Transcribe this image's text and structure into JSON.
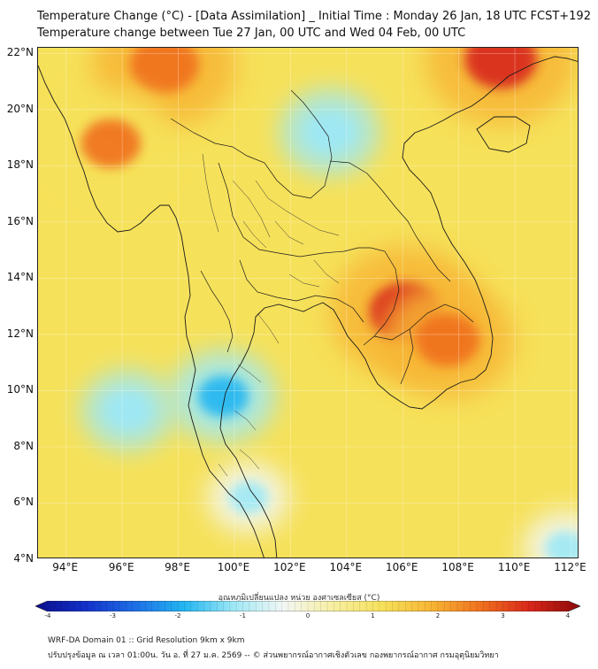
{
  "header": {
    "title_line1": "Temperature Change (°C) - [Data Assimilation] _ Initial Time : Monday 26 Jan, 18 UTC FCST+192",
    "title_line2": "Temperature change between Tue 27 Jan, 00 UTC and Wed 04 Feb, 00 UTC"
  },
  "map": {
    "lat_labels": [
      "22°N",
      "20°N",
      "18°N",
      "16°N",
      "14°N",
      "12°N",
      "10°N",
      "8°N",
      "6°N",
      "4°N"
    ],
    "lon_labels": [
      "94°E",
      "96°E",
      "98°E",
      "100°E",
      "102°E",
      "104°E",
      "106°E",
      "108°E",
      "110°E",
      "112°E"
    ],
    "lat_range": [
      4,
      22.2
    ],
    "lon_range": [
      93,
      112.3
    ],
    "background_color": "#f6e15a",
    "features": [
      {
        "kind": "warm",
        "name": "northern-myanmar-warm",
        "lon": 97.5,
        "lat": 21.6,
        "value": 2.8
      },
      {
        "kind": "warm",
        "name": "north-vietnam-warm",
        "lon": 109.5,
        "lat": 21.8,
        "value": 3.0
      },
      {
        "kind": "warm",
        "name": "cambodia-warm",
        "lon": 106.1,
        "lat": 12.8,
        "value": 3.0
      },
      {
        "kind": "warm",
        "name": "south-vietnam-warm",
        "lon": 107.6,
        "lat": 11.8,
        "value": 2.5
      },
      {
        "kind": "warm",
        "name": "west-myanmar-warm",
        "lon": 95.6,
        "lat": 18.8,
        "value": 2.2
      },
      {
        "kind": "cool",
        "name": "laos-cool",
        "lon": 103.4,
        "lat": 19.2,
        "value": -1.4
      },
      {
        "kind": "cool",
        "name": "andaman-sea-cool",
        "lon": 96.2,
        "lat": 9.3,
        "value": -1.2
      },
      {
        "kind": "cool",
        "name": "peninsula-cool",
        "lon": 99.6,
        "lat": 9.8,
        "value": -1.6
      },
      {
        "kind": "cool",
        "name": "malacca-cool",
        "lon": 100.5,
        "lat": 6.2,
        "value": -0.9
      },
      {
        "kind": "cool",
        "name": "southeast-sea-cool",
        "lon": 111.8,
        "lat": 4.4,
        "value": -1.0
      }
    ]
  },
  "colorbar": {
    "title": "อุณหภูมิเปลี่ยนแปลง หน่วย องศาเซลเซียส (°C)",
    "tick_labels": [
      "-4",
      "-3",
      "-2",
      "-1",
      "0",
      "1",
      "2",
      "3",
      "4"
    ],
    "range": [
      -4,
      4
    ],
    "colors": [
      "#0b0f8c",
      "#1230c8",
      "#1e6ee6",
      "#22b6f2",
      "#9ee8f5",
      "#f2f7f5",
      "#f7efa2",
      "#f6e15a",
      "#f7b534",
      "#f0701e",
      "#d8261a",
      "#8a0a0a"
    ]
  },
  "footer": {
    "line1": "WRF-DA Domain 01 :: Grid Resolution 9km x 9km",
    "line2": "ปรับปรุงข้อมูล ณ เวลา 01:00น. วัน อ. ที่ 27 ม.ค. 2569 -- © ส่วนพยากรณ์อากาศเชิงตัวเลข กองพยากรณ์อากาศ กรมอุตุนิยมวิทยา"
  }
}
